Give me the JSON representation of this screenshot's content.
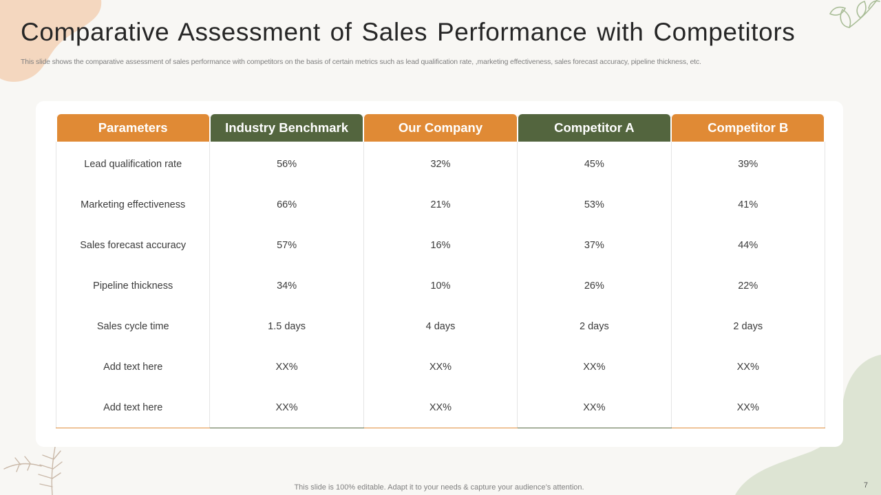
{
  "slide": {
    "title": "Comparative Assessment of Sales Performance with Competitors",
    "subtitle": "This slide shows the comparative assessment of sales performance with competitors on the basis of certain metrics such as lead qualification rate, ,marketing effectiveness, sales forecast accuracy, pipeline thickness, etc.",
    "footer": "This slide is 100% editable. Adapt it to your needs & capture your audience’s attention.",
    "page_number": "7"
  },
  "colors": {
    "orange": "#e08a35",
    "green": "#53653e",
    "peach_blob": "#f4d7bf",
    "sage_blob": "#dde4d3"
  },
  "table": {
    "headers": [
      "Parameters",
      "Industry Benchmark",
      "Our Company",
      "Competitor A",
      "Competitor B"
    ],
    "rows": [
      [
        "Lead qualification rate",
        "56%",
        "32%",
        "45%",
        "39%"
      ],
      [
        "Marketing effectiveness",
        "66%",
        "21%",
        "53%",
        "41%"
      ],
      [
        "Sales forecast accuracy",
        "57%",
        "16%",
        "37%",
        "44%"
      ],
      [
        "Pipeline thickness",
        "34%",
        "10%",
        "26%",
        "22%"
      ],
      [
        "Sales cycle time",
        "1.5 days",
        "4 days",
        "2 days",
        "2 days"
      ],
      [
        "Add text here",
        "XX%",
        "XX%",
        "XX%",
        "XX%"
      ],
      [
        "Add text here",
        "XX%",
        "XX%",
        "XX%",
        "XX%"
      ]
    ]
  }
}
